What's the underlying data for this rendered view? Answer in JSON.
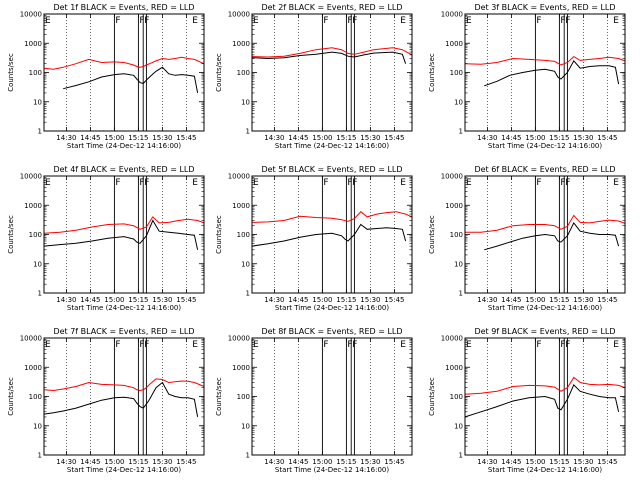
{
  "chart_data": [
    {
      "type": "line",
      "title": "Det 1f BLACK = Events, RED = LLD",
      "xlabel": "Start Time (24-Dec-12 14:16:00)",
      "ylabel": "Counts/sec",
      "yscale": "log",
      "ylim": [
        1,
        10000
      ],
      "yticks": [
        "1",
        "10",
        "100",
        "1000",
        "10000"
      ],
      "xtick_labels": [
        "14:30",
        "14:45",
        "15:00",
        "15:15",
        "15:30",
        "15:45"
      ],
      "markers": [
        {
          "label": "E",
          "t": 0
        },
        {
          "label": "F",
          "t": 44
        },
        {
          "label": "F",
          "t": 59
        },
        {
          "label": "F",
          "t": 62
        },
        {
          "label": "E",
          "t": 92
        }
      ],
      "series": [
        {
          "name": "Events",
          "color": "#000000",
          "x": [
            12,
            20,
            28,
            36,
            44,
            50,
            56,
            58,
            60,
            62,
            64,
            66,
            70,
            74,
            78,
            82,
            86,
            90,
            94,
            96
          ],
          "y": [
            28,
            36,
            48,
            70,
            85,
            90,
            80,
            60,
            45,
            42,
            55,
            70,
            110,
            150,
            90,
            80,
            85,
            80,
            75,
            20
          ]
        },
        {
          "name": "LLD",
          "color": "#ff0000",
          "x": [
            0,
            6,
            12,
            20,
            28,
            36,
            44,
            50,
            56,
            58,
            60,
            62,
            64,
            66,
            70,
            74,
            78,
            82,
            86,
            90,
            94,
            100
          ],
          "y": [
            140,
            130,
            150,
            200,
            280,
            220,
            230,
            220,
            180,
            160,
            150,
            160,
            180,
            200,
            250,
            300,
            280,
            300,
            330,
            300,
            280,
            200
          ]
        }
      ]
    },
    {
      "type": "line",
      "title": "Det 2f BLACK = Events, RED = LLD",
      "xlabel": "Start Time (24-Dec-12 14:16:00)",
      "ylabel": "Counts/sec",
      "yscale": "log",
      "ylim": [
        1,
        10000
      ],
      "yticks": [
        "1",
        "10",
        "100",
        "1000",
        "10000"
      ],
      "xtick_labels": [
        "14:30",
        "14:45",
        "15:00",
        "15:15",
        "15:30",
        "15:45"
      ],
      "markers": [
        {
          "label": "E",
          "t": 0
        },
        {
          "label": "F",
          "t": 44
        },
        {
          "label": "F",
          "t": 59
        },
        {
          "label": "F",
          "t": 62
        },
        {
          "label": "E",
          "t": 92
        }
      ],
      "series": [
        {
          "name": "Events",
          "color": "#000000",
          "x": [
            0,
            10,
            20,
            30,
            40,
            50,
            56,
            60,
            64,
            70,
            76,
            82,
            88,
            94,
            96
          ],
          "y": [
            320,
            300,
            320,
            380,
            420,
            500,
            450,
            360,
            340,
            400,
            460,
            480,
            500,
            420,
            200
          ]
        },
        {
          "name": "LLD",
          "color": "#ff0000",
          "x": [
            0,
            10,
            20,
            30,
            40,
            50,
            56,
            60,
            64,
            70,
            76,
            82,
            88,
            94,
            100
          ],
          "y": [
            350,
            340,
            360,
            450,
            600,
            700,
            600,
            450,
            420,
            500,
            600,
            650,
            700,
            600,
            400
          ]
        }
      ]
    },
    {
      "type": "line",
      "title": "Det 3f BLACK = Events, RED = LLD",
      "xlabel": "Start Time (24-Dec-12 14:16:00)",
      "ylabel": "Counts/sec",
      "yscale": "log",
      "ylim": [
        1,
        10000
      ],
      "yticks": [
        "1",
        "10",
        "100",
        "1000",
        "10000"
      ],
      "xtick_labels": [
        "14:30",
        "14:45",
        "15:00",
        "15:15",
        "15:30",
        "15:45"
      ],
      "markers": [
        {
          "label": "E",
          "t": 0
        },
        {
          "label": "F",
          "t": 44
        },
        {
          "label": "F",
          "t": 59
        },
        {
          "label": "F",
          "t": 62
        },
        {
          "label": "E",
          "t": 92
        }
      ],
      "series": [
        {
          "name": "Events",
          "color": "#000000",
          "x": [
            12,
            20,
            28,
            36,
            44,
            50,
            56,
            58,
            60,
            64,
            68,
            72,
            78,
            84,
            90,
            94,
            96
          ],
          "y": [
            35,
            50,
            80,
            100,
            120,
            130,
            110,
            70,
            60,
            100,
            250,
            140,
            160,
            170,
            170,
            150,
            40
          ]
        },
        {
          "name": "LLD",
          "color": "#ff0000",
          "x": [
            0,
            10,
            20,
            30,
            40,
            50,
            56,
            60,
            64,
            68,
            72,
            78,
            84,
            90,
            96,
            100
          ],
          "y": [
            200,
            190,
            220,
            300,
            280,
            260,
            240,
            180,
            220,
            350,
            260,
            280,
            300,
            330,
            300,
            250
          ]
        }
      ]
    },
    {
      "type": "line",
      "title": "Det 4f BLACK = Events, RED = LLD",
      "xlabel": "Start Time (24-Dec-12 14:16:00)",
      "ylabel": "Counts/sec",
      "yscale": "log",
      "ylim": [
        1,
        10000
      ],
      "yticks": [
        "1",
        "10",
        "100",
        "1000",
        "10000"
      ],
      "xtick_labels": [
        "14:30",
        "14:45",
        "15:00",
        "15:15",
        "15:30",
        "15:45"
      ],
      "markers": [
        {
          "label": "E",
          "t": 0
        },
        {
          "label": "F",
          "t": 44
        },
        {
          "label": "F",
          "t": 59
        },
        {
          "label": "F",
          "t": 62
        },
        {
          "label": "E",
          "t": 92
        }
      ],
      "series": [
        {
          "name": "Events",
          "color": "#000000",
          "x": [
            0,
            10,
            20,
            30,
            40,
            50,
            56,
            58,
            60,
            64,
            68,
            72,
            78,
            84,
            90,
            94,
            96
          ],
          "y": [
            40,
            45,
            50,
            60,
            75,
            85,
            70,
            55,
            50,
            90,
            300,
            130,
            120,
            110,
            100,
            95,
            30
          ]
        },
        {
          "name": "LLD",
          "color": "#ff0000",
          "x": [
            0,
            10,
            20,
            30,
            40,
            50,
            56,
            60,
            64,
            68,
            72,
            78,
            84,
            90,
            96,
            100
          ],
          "y": [
            110,
            120,
            140,
            180,
            220,
            230,
            200,
            150,
            180,
            400,
            250,
            260,
            300,
            330,
            300,
            250
          ]
        }
      ]
    },
    {
      "type": "line",
      "title": "Det 5f BLACK = Events, RED = LLD",
      "xlabel": "Start Time (24-Dec-12 14:16:00)",
      "ylabel": "Counts/sec",
      "yscale": "log",
      "ylim": [
        1,
        10000
      ],
      "yticks": [
        "1",
        "10",
        "100",
        "1000",
        "10000"
      ],
      "xtick_labels": [
        "14:30",
        "14:45",
        "15:00",
        "15:15",
        "15:30",
        "15:45"
      ],
      "markers": [
        {
          "label": "E",
          "t": 0
        },
        {
          "label": "F",
          "t": 44
        },
        {
          "label": "F",
          "t": 59
        },
        {
          "label": "F",
          "t": 62
        },
        {
          "label": "E",
          "t": 92
        }
      ],
      "series": [
        {
          "name": "Events",
          "color": "#000000",
          "x": [
            0,
            10,
            20,
            30,
            40,
            50,
            56,
            58,
            60,
            64,
            68,
            72,
            78,
            84,
            90,
            94,
            96
          ],
          "y": [
            40,
            48,
            60,
            80,
            100,
            110,
            90,
            70,
            60,
            100,
            220,
            150,
            160,
            170,
            160,
            150,
            60
          ]
        },
        {
          "name": "LLD",
          "color": "#ff0000",
          "x": [
            0,
            10,
            20,
            30,
            40,
            50,
            56,
            60,
            64,
            68,
            72,
            78,
            84,
            90,
            96,
            100
          ],
          "y": [
            260,
            270,
            300,
            420,
            380,
            360,
            320,
            280,
            350,
            600,
            400,
            500,
            560,
            600,
            500,
            400
          ]
        }
      ]
    },
    {
      "type": "line",
      "title": "Det 6f BLACK = Events, RED = LLD",
      "xlabel": "Start Time (24-Dec-12 14:16:00)",
      "ylabel": "Counts/sec",
      "yscale": "log",
      "ylim": [
        1,
        10000
      ],
      "yticks": [
        "1",
        "10",
        "100",
        "1000",
        "10000"
      ],
      "xtick_labels": [
        "14:30",
        "14:45",
        "15:00",
        "15:15",
        "15:30",
        "15:45"
      ],
      "markers": [
        {
          "label": "E",
          "t": 0
        },
        {
          "label": "F",
          "t": 44
        },
        {
          "label": "F",
          "t": 59
        },
        {
          "label": "F",
          "t": 62
        },
        {
          "label": "E",
          "t": 92
        }
      ],
      "series": [
        {
          "name": "Events",
          "color": "#000000",
          "x": [
            12,
            20,
            28,
            36,
            44,
            50,
            56,
            58,
            60,
            64,
            68,
            72,
            78,
            84,
            90,
            94,
            96
          ],
          "y": [
            30,
            40,
            55,
            75,
            90,
            100,
            90,
            60,
            55,
            90,
            250,
            130,
            110,
            100,
            100,
            95,
            40
          ]
        },
        {
          "name": "LLD",
          "color": "#ff0000",
          "x": [
            0,
            10,
            20,
            30,
            40,
            50,
            56,
            60,
            64,
            68,
            72,
            78,
            84,
            90,
            96,
            100
          ],
          "y": [
            120,
            120,
            140,
            200,
            220,
            220,
            200,
            150,
            190,
            450,
            260,
            250,
            280,
            310,
            290,
            240
          ]
        }
      ]
    },
    {
      "type": "line",
      "title": "Det 7f BLACK = Events, RED = LLD",
      "xlabel": "Start Time (24-Dec-12 14:16:00)",
      "ylabel": "Counts/sec",
      "yscale": "log",
      "ylim": [
        1,
        10000
      ],
      "yticks": [
        "1",
        "10",
        "100",
        "1000",
        "10000"
      ],
      "xtick_labels": [
        "14:30",
        "14:45",
        "15:00",
        "15:15",
        "15:30",
        "15:45"
      ],
      "markers": [
        {
          "label": "E",
          "t": 0
        },
        {
          "label": "F",
          "t": 44
        },
        {
          "label": "F",
          "t": 59
        },
        {
          "label": "F",
          "t": 62
        },
        {
          "label": "E",
          "t": 92
        }
      ],
      "series": [
        {
          "name": "Events",
          "color": "#000000",
          "x": [
            0,
            6,
            12,
            20,
            28,
            36,
            44,
            50,
            56,
            58,
            60,
            62,
            64,
            66,
            70,
            74,
            78,
            82,
            86,
            90,
            94,
            96
          ],
          "y": [
            25,
            28,
            32,
            40,
            55,
            75,
            90,
            95,
            85,
            60,
            45,
            40,
            55,
            80,
            200,
            300,
            120,
            100,
            90,
            90,
            80,
            20
          ]
        },
        {
          "name": "LLD",
          "color": "#ff0000",
          "x": [
            0,
            6,
            12,
            20,
            28,
            36,
            44,
            50,
            56,
            58,
            60,
            62,
            64,
            66,
            70,
            74,
            78,
            82,
            86,
            90,
            94,
            100
          ],
          "y": [
            170,
            160,
            180,
            220,
            300,
            260,
            250,
            240,
            200,
            170,
            160,
            170,
            200,
            260,
            400,
            380,
            300,
            320,
            340,
            330,
            300,
            220
          ]
        }
      ]
    },
    {
      "type": "line",
      "title": "Det 8f BLACK = Events, RED = LLD",
      "xlabel": "Start Time (24-Dec-12 14:16:00)",
      "ylabel": "Counts/sec",
      "yscale": "log",
      "ylim": [
        1,
        10000
      ],
      "yticks": [
        "1",
        "10",
        "100",
        "1000",
        "10000"
      ],
      "xtick_labels": [
        "14:30",
        "14:45",
        "15:00",
        "15:15",
        "15:30",
        "15:45"
      ],
      "markers": [
        {
          "label": "E",
          "t": 0
        },
        {
          "label": "F",
          "t": 44
        },
        {
          "label": "F",
          "t": 59
        },
        {
          "label": "F",
          "t": 62
        },
        {
          "label": "E",
          "t": 92
        }
      ],
      "series": []
    },
    {
      "type": "line",
      "title": "Det 9f BLACK = Events, RED = LLD",
      "xlabel": "Start Time (24-Dec-12 14:16:00)",
      "ylabel": "Counts/sec",
      "yscale": "log",
      "ylim": [
        1,
        10000
      ],
      "yticks": [
        "1",
        "10",
        "100",
        "1000",
        "10000"
      ],
      "xtick_labels": [
        "14:30",
        "14:45",
        "15:00",
        "15:15",
        "15:30",
        "15:45"
      ],
      "markers": [
        {
          "label": "E",
          "t": 0
        },
        {
          "label": "F",
          "t": 44
        },
        {
          "label": "F",
          "t": 59
        },
        {
          "label": "F",
          "t": 62
        },
        {
          "label": "E",
          "t": 92
        }
      ],
      "series": [
        {
          "name": "Events",
          "color": "#000000",
          "x": [
            0,
            10,
            20,
            30,
            40,
            50,
            56,
            58,
            60,
            64,
            68,
            72,
            78,
            84,
            90,
            94,
            96
          ],
          "y": [
            20,
            30,
            45,
            70,
            90,
            100,
            80,
            40,
            35,
            80,
            250,
            150,
            120,
            100,
            90,
            90,
            30
          ]
        },
        {
          "name": "LLD",
          "color": "#ff0000",
          "x": [
            0,
            10,
            20,
            30,
            40,
            50,
            56,
            60,
            64,
            68,
            72,
            78,
            84,
            90,
            96,
            100
          ],
          "y": [
            120,
            130,
            150,
            220,
            240,
            230,
            210,
            150,
            200,
            450,
            300,
            260,
            250,
            260,
            240,
            200
          ]
        }
      ]
    }
  ]
}
